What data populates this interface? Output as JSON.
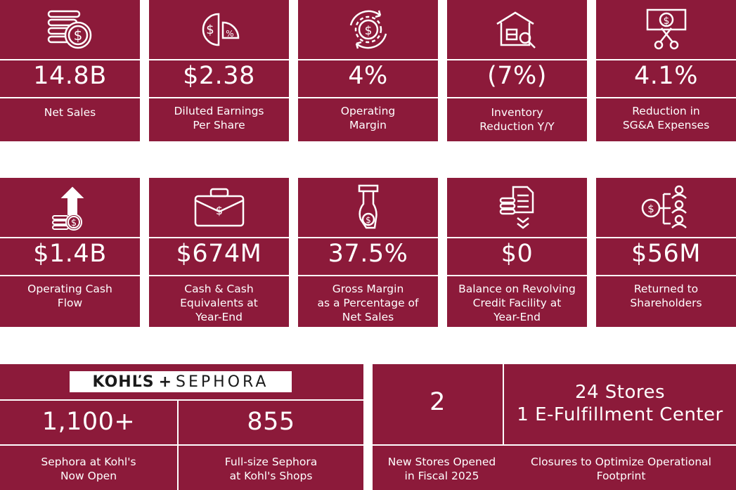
{
  "colors": {
    "card_bg": "#8c1a3a",
    "divider": "#ffffff",
    "text": "#ffffff"
  },
  "row1": [
    {
      "icon": "coins-dollar-icon",
      "value": "14.8B",
      "label": "Net Sales"
    },
    {
      "icon": "dollar-percent-pie-icon",
      "value": "$2.38",
      "label": "Diluted Earnings\nPer Share"
    },
    {
      "icon": "dollar-gear-cycle-icon",
      "value": "4%",
      "label": "Operating\nMargin"
    },
    {
      "icon": "warehouse-search-icon",
      "value": "(7%)",
      "label": "Inventory\nReduction Y/Y"
    },
    {
      "icon": "scissors-cash-icon",
      "value": "4.1%",
      "label": "Reduction in\nSG&A Expenses"
    }
  ],
  "row2": [
    {
      "icon": "coins-arrow-up-icon",
      "value": "$1.4B",
      "label": "Operating Cash\nFlow"
    },
    {
      "icon": "briefcase-dollar-icon",
      "value": "$674M",
      "label": "Cash & Cash\nEquivalents at\nYear-End"
    },
    {
      "icon": "hand-dollar-icon",
      "value": "37.5%",
      "label": "Gross Margin\nas a Percentage of\nNet Sales"
    },
    {
      "icon": "coins-document-icon",
      "value": "$0",
      "label": "Balance on Revolving\nCredit Facility at\nYear-End"
    },
    {
      "icon": "dollar-shareholders-icon",
      "value": "$56M",
      "label": "Returned to\nShareholders"
    }
  ],
  "sephora": {
    "logo_left": "KOHĽS",
    "logo_plus": "+",
    "logo_right": "SEPHORA",
    "left_value": "1,100+",
    "left_label": "Sephora at Kohl's\nNow Open",
    "right_value": "855",
    "right_label": "Full-size Sephora\nat Kohl's Shops"
  },
  "stores": {
    "new_value": "2",
    "new_label": "New Stores Opened\nin Fiscal 2025",
    "closures_value": "24 Stores\n1 E-Fulfillment Center",
    "closures_label": "Closures to Optimize Operational\nFootprint"
  }
}
